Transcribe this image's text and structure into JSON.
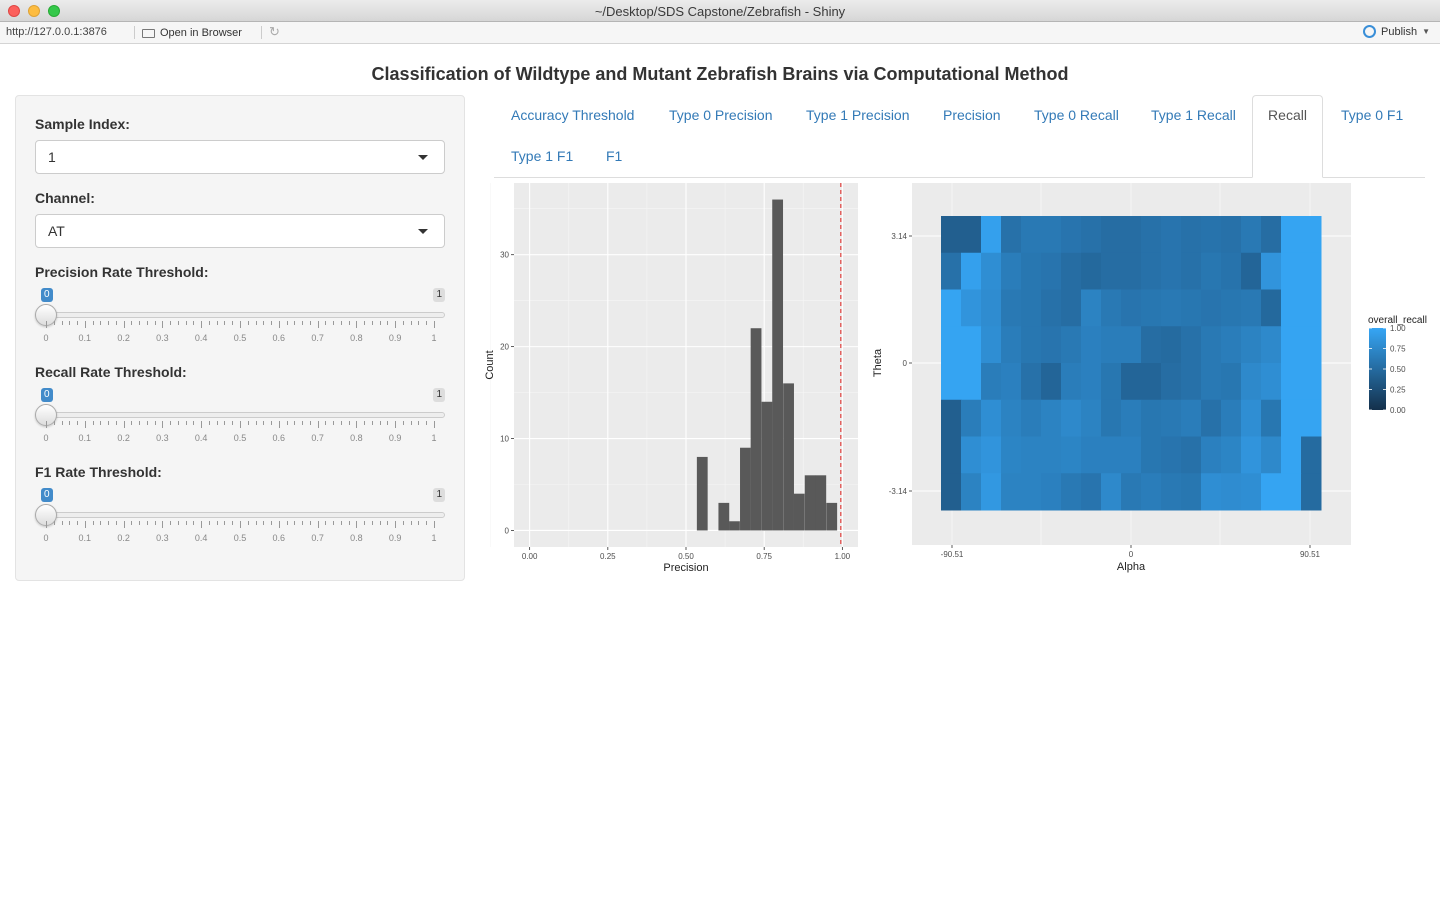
{
  "window": {
    "title": "~/Desktop/SDS Capstone/Zebrafish - Shiny"
  },
  "addressbar": {
    "url": "http://127.0.0.1:3876",
    "open_label": "Open in Browser",
    "publish_label": "Publish"
  },
  "page": {
    "title": "Classification of Wildtype and Mutant Zebrafish Brains via Computational Method"
  },
  "sidebar": {
    "sample_label": "Sample Index:",
    "sample_value": "1",
    "channel_label": "Channel:",
    "channel_value": "AT",
    "sliders": [
      {
        "label": "Precision Rate Threshold:",
        "value": "0",
        "max": "1"
      },
      {
        "label": "Recall Rate Threshold:",
        "value": "0",
        "max": "1"
      },
      {
        "label": "F1 Rate Threshold:",
        "value": "0",
        "max": "1"
      }
    ],
    "ticks": [
      "0",
      "0.1",
      "0.2",
      "0.3",
      "0.4",
      "0.5",
      "0.6",
      "0.7",
      "0.8",
      "0.9",
      "1"
    ]
  },
  "tabs": [
    {
      "label": "Accuracy Threshold",
      "active": false
    },
    {
      "label": "Type 0 Precision",
      "active": false
    },
    {
      "label": "Type 1 Precision",
      "active": false
    },
    {
      "label": "Precision",
      "active": false
    },
    {
      "label": "Type 0 Recall",
      "active": false
    },
    {
      "label": "Type 1 Recall",
      "active": false
    },
    {
      "label": "Recall",
      "active": true
    },
    {
      "label": "Type 0 F1",
      "active": false
    },
    {
      "label": "Type 1 F1",
      "active": false
    },
    {
      "label": "F1",
      "active": false
    }
  ],
  "colors": {
    "bar": "#595959",
    "panel": "#ebebeb",
    "threshold": "#e0413e",
    "accent": "#337ab7"
  },
  "chart_data": [
    {
      "type": "bar",
      "xlabel": "Precision",
      "ylabel": "Count",
      "xlim": [
        -0.05,
        1.05
      ],
      "ylim": [
        -1.8,
        37.8
      ],
      "xticks": [
        "0.00",
        "0.25",
        "0.50",
        "0.75",
        "1.00"
      ],
      "yticks": [
        "0",
        "10",
        "20",
        "30"
      ],
      "bin_width": 0.0345,
      "bins": [
        0.552,
        0.586,
        0.621,
        0.655,
        0.69,
        0.724,
        0.759,
        0.793,
        0.828,
        0.862,
        0.897,
        0.931,
        0.966
      ],
      "values": [
        8,
        0,
        3,
        1,
        9,
        22,
        14,
        36,
        16,
        4,
        6,
        6,
        3
      ],
      "threshold_line": 0.995
    },
    {
      "type": "heatmap",
      "xlabel": "Alpha",
      "ylabel": "Theta",
      "xticks": [
        "-90.51",
        "0",
        "90.51"
      ],
      "yticks": [
        "3.14",
        "0",
        "-3.14"
      ],
      "legend_title": "overall_recall",
      "legend_ticks": [
        "1.00",
        "0.75",
        "0.50",
        "0.25",
        "0.00"
      ],
      "legend_position": "right",
      "rows": 8,
      "cols": 19,
      "values": [
        [
          0.4,
          0.4,
          0.95,
          0.55,
          0.62,
          0.62,
          0.58,
          0.55,
          0.52,
          0.52,
          0.55,
          0.58,
          0.55,
          0.57,
          0.55,
          0.62,
          0.52,
          0.98,
          0.98
        ],
        [
          0.55,
          0.95,
          0.8,
          0.65,
          0.6,
          0.58,
          0.52,
          0.48,
          0.52,
          0.52,
          0.55,
          0.58,
          0.55,
          0.6,
          0.57,
          0.45,
          0.85,
          0.98,
          0.98
        ],
        [
          0.98,
          0.85,
          0.78,
          0.62,
          0.6,
          0.55,
          0.52,
          0.7,
          0.62,
          0.58,
          0.6,
          0.62,
          0.6,
          0.58,
          0.6,
          0.62,
          0.48,
          0.98,
          0.98
        ],
        [
          0.98,
          0.98,
          0.8,
          0.65,
          0.6,
          0.58,
          0.62,
          0.68,
          0.65,
          0.65,
          0.52,
          0.5,
          0.55,
          0.62,
          0.65,
          0.7,
          0.75,
          0.98,
          0.98
        ],
        [
          0.98,
          0.98,
          0.65,
          0.68,
          0.55,
          0.45,
          0.65,
          0.68,
          0.6,
          0.45,
          0.45,
          0.52,
          0.55,
          0.62,
          0.6,
          0.75,
          0.8,
          0.98,
          0.98
        ],
        [
          0.4,
          0.65,
          0.8,
          0.7,
          0.65,
          0.7,
          0.75,
          0.7,
          0.6,
          0.65,
          0.6,
          0.62,
          0.65,
          0.55,
          0.65,
          0.8,
          0.6,
          0.98,
          0.98
        ],
        [
          0.4,
          0.8,
          0.85,
          0.72,
          0.7,
          0.7,
          0.72,
          0.68,
          0.68,
          0.68,
          0.6,
          0.58,
          0.55,
          0.68,
          0.72,
          0.85,
          0.75,
          0.98,
          0.5
        ],
        [
          0.4,
          0.7,
          0.88,
          0.7,
          0.7,
          0.68,
          0.62,
          0.58,
          0.75,
          0.62,
          0.65,
          0.62,
          0.6,
          0.8,
          0.78,
          0.8,
          0.98,
          0.98,
          0.5
        ]
      ]
    }
  ]
}
